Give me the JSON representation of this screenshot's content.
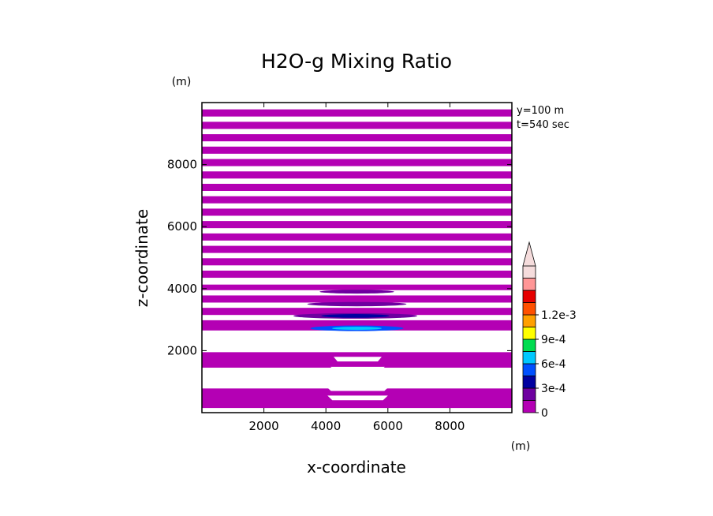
{
  "chart_data": {
    "type": "heatmap",
    "title": "H2O-g Mixing Ratio",
    "xlabel": "x-coordinate",
    "ylabel": "z-coordinate",
    "x_unit": "(m)",
    "y_unit": "(m)",
    "xlim": [
      0,
      10000
    ],
    "ylim": [
      0,
      10000
    ],
    "xticks": [
      "2000",
      "4000",
      "6000",
      "8000"
    ],
    "yticks": [
      "2000",
      "4000",
      "6000",
      "8000"
    ],
    "annotations": [
      "y=100 m",
      "t=540 sec"
    ],
    "colorbar": {
      "tick_labels": [
        "0",
        "3e-4",
        "6e-4",
        "9e-4",
        "1.2e-3"
      ],
      "bins": [
        {
          "lower": 0.0,
          "color": "#b400b4"
        },
        {
          "lower": 0.00015,
          "color": "#6e00a0"
        },
        {
          "lower": 0.0003,
          "color": "#0000a0"
        },
        {
          "lower": 0.00045,
          "color": "#0050ff"
        },
        {
          "lower": 0.0006,
          "color": "#00c8ff"
        },
        {
          "lower": 0.00075,
          "color": "#00dc50"
        },
        {
          "lower": 0.0009,
          "color": "#ffff00"
        },
        {
          "lower": 0.00105,
          "color": "#ffa000"
        },
        {
          "lower": 0.0012,
          "color": "#ff5000"
        },
        {
          "lower": 0.00135,
          "color": "#e60000"
        },
        {
          "lower": 0.0015,
          "color": "#ff9696"
        },
        {
          "lower": 0.00165,
          "color": "#f5dcdc"
        }
      ],
      "extend": "max"
    },
    "bands": [
      {
        "z0": 9550,
        "z1": 9780
      },
      {
        "z0": 9150,
        "z1": 9380
      },
      {
        "z0": 8750,
        "z1": 8980
      },
      {
        "z0": 8350,
        "z1": 8580
      },
      {
        "z0": 7950,
        "z1": 8180
      },
      {
        "z0": 7550,
        "z1": 7780
      },
      {
        "z0": 7150,
        "z1": 7380
      },
      {
        "z0": 6750,
        "z1": 6980
      },
      {
        "z0": 6350,
        "z1": 6580
      },
      {
        "z0": 5950,
        "z1": 6180
      },
      {
        "z0": 5550,
        "z1": 5780
      },
      {
        "z0": 5150,
        "z1": 5380
      },
      {
        "z0": 4750,
        "z1": 4980
      },
      {
        "z0": 4350,
        "z1": 4580
      },
      {
        "z0": 3950,
        "z1": 4130
      },
      {
        "z0": 3550,
        "z1": 3780
      },
      {
        "z0": 3150,
        "z1": 3380
      },
      {
        "z0": 2750,
        "z1": 2980
      },
      {
        "z0": 2650,
        "z1": 2780
      },
      {
        "z0": 1450,
        "z1": 1950
      },
      {
        "z0": 150,
        "z1": 780
      }
    ],
    "features": [
      {
        "x": 5000,
        "z": 2720,
        "rx": 1500,
        "rz": 90,
        "color": "#0050ff"
      },
      {
        "x": 5000,
        "z": 2720,
        "rx": 800,
        "rz": 50,
        "color": "#00c8ff"
      },
      {
        "x": 4950,
        "z": 3120,
        "rx": 2000,
        "rz": 90,
        "color": "#6e00a0"
      },
      {
        "x": 4950,
        "z": 3120,
        "rx": 1100,
        "rz": 60,
        "color": "#0000a0"
      },
      {
        "x": 5000,
        "z": 3500,
        "rx": 1600,
        "rz": 70,
        "color": "#6e00a0"
      },
      {
        "x": 5000,
        "z": 3900,
        "rx": 1200,
        "rz": 60,
        "color": "#6e00a0"
      }
    ],
    "plume": [
      {
        "z0": 2000,
        "z1": 2200,
        "xl": 4300,
        "xr": 5700
      },
      {
        "z0": 1650,
        "z1": 1800,
        "xl": 4250,
        "xr": 5800
      },
      {
        "z0": 1350,
        "z1": 1480,
        "xl": 4150,
        "xr": 5900
      },
      {
        "z0": 1050,
        "z1": 1170,
        "xl": 4100,
        "xr": 5950
      },
      {
        "z0": 700,
        "z1": 850,
        "xl": 4000,
        "xr": 6050
      },
      {
        "z0": 400,
        "z1": 550,
        "xl": 4050,
        "xr": 6000
      }
    ]
  }
}
